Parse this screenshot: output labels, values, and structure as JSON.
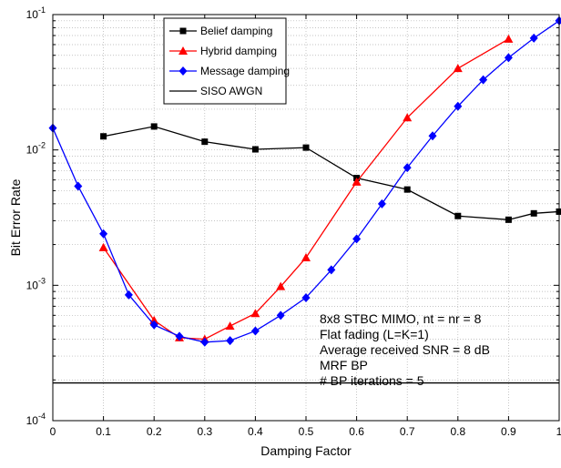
{
  "chart_data": {
    "type": "line",
    "xlabel": "Damping Factor",
    "ylabel": "Bit Error Rate",
    "xlim": [
      0,
      1
    ],
    "ylim": [
      0.0001,
      0.1
    ],
    "y_scale": "log",
    "grid": true,
    "legend_position": "top-left",
    "x_ticks": [
      {
        "v": 0,
        "label": "0"
      },
      {
        "v": 0.1,
        "label": "0.1"
      },
      {
        "v": 0.2,
        "label": "0.2"
      },
      {
        "v": 0.3,
        "label": "0.3"
      },
      {
        "v": 0.4,
        "label": "0.4"
      },
      {
        "v": 0.5,
        "label": "0.5"
      },
      {
        "v": 0.6,
        "label": "0.6"
      },
      {
        "v": 0.7,
        "label": "0.7"
      },
      {
        "v": 0.8,
        "label": "0.8"
      },
      {
        "v": 0.9,
        "label": "0.9"
      },
      {
        "v": 1,
        "label": "1"
      }
    ],
    "y_ticks": [
      {
        "v": 0.0001,
        "base": "10",
        "exp": "-4"
      },
      {
        "v": 0.001,
        "base": "10",
        "exp": "-3"
      },
      {
        "v": 0.01,
        "base": "10",
        "exp": "-2"
      },
      {
        "v": 0.1,
        "base": "10",
        "exp": "-1"
      }
    ],
    "series": [
      {
        "name": "Belief damping",
        "color": "#000000",
        "marker": "square",
        "x": [
          0.1,
          0.2,
          0.3,
          0.4,
          0.5,
          0.6,
          0.7,
          0.8,
          0.9,
          0.95,
          1.0
        ],
        "y": [
          0.0126,
          0.0149,
          0.0115,
          0.0101,
          0.0104,
          0.0062,
          0.0051,
          0.00325,
          0.00305,
          0.0034,
          0.0035
        ]
      },
      {
        "name": "Hybrid damping",
        "color": "#ff0000",
        "marker": "triangle",
        "x": [
          0.1,
          0.2,
          0.25,
          0.3,
          0.35,
          0.4,
          0.45,
          0.5,
          0.6,
          0.7,
          0.8,
          0.9
        ],
        "y": [
          0.0019,
          0.00055,
          0.00041,
          0.0004,
          0.0005,
          0.00062,
          0.00098,
          0.0016,
          0.0058,
          0.0173,
          0.04,
          0.066
        ]
      },
      {
        "name": "Message damping",
        "color": "#0000ff",
        "marker": "diamond",
        "x": [
          0,
          0.05,
          0.1,
          0.15,
          0.2,
          0.25,
          0.3,
          0.35,
          0.4,
          0.45,
          0.5,
          0.55,
          0.6,
          0.65,
          0.7,
          0.75,
          0.8,
          0.85,
          0.9,
          0.95,
          1.0
        ],
        "y": [
          0.0145,
          0.0054,
          0.0024,
          0.00085,
          0.00051,
          0.00042,
          0.00038,
          0.00039,
          0.00046,
          0.0006,
          0.00081,
          0.0013,
          0.0022,
          0.004,
          0.0074,
          0.0127,
          0.021,
          0.033,
          0.048,
          0.067,
          0.09
        ]
      },
      {
        "name": "SISO AWGN",
        "color": "#000000",
        "marker": "none",
        "x": [
          0,
          1
        ],
        "y": [
          0.00019,
          0.00019
        ]
      }
    ],
    "annotations": [
      "8x8 STBC MIMO, nt = nr = 8",
      "Flat fading (L=K=1)",
      "Average received SNR = 8 dB",
      "MRF BP",
      "# BP iterations = 5"
    ]
  }
}
